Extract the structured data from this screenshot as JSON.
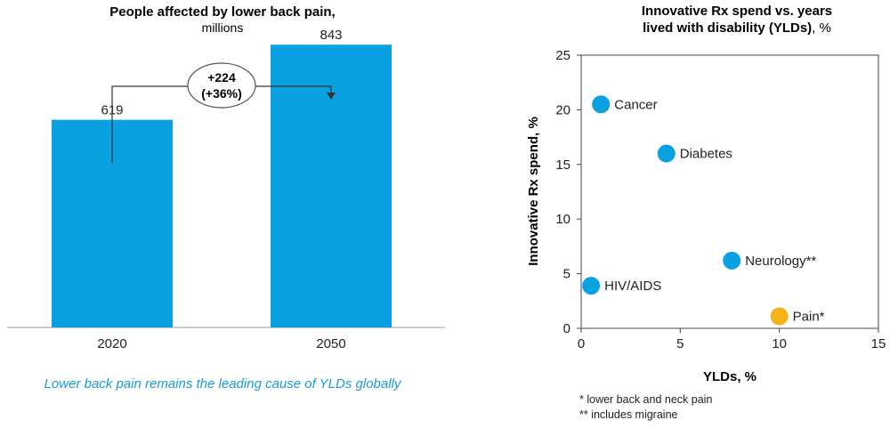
{
  "charts": {
    "left": {
      "title_bold": "People affected by lower back pain,",
      "title_sub": "millions",
      "change_line1": "+224",
      "change_line2": "(+36%)",
      "caption": "Lower back pain remains the leading cause of YLDs globally"
    },
    "right": {
      "title_line1": "Innovative Rx spend vs. years",
      "title_line2_bold": "lived with disability (YLDs)",
      "title_line2_tail": ", %",
      "footnote1": "* lower back and neck pain",
      "footnote2": "** includes migraine"
    }
  },
  "chart_data": [
    {
      "type": "bar",
      "title": "People affected by lower back pain, millions",
      "categories": [
        "2020",
        "2050"
      ],
      "values": [
        619,
        843
      ],
      "ylim": [
        0,
        1000
      ],
      "annotation": "+224 (+36%)",
      "color": "#0aa1e2"
    },
    {
      "type": "scatter",
      "title": "Innovative Rx spend vs. years lived with disability (YLDs), %",
      "xlabel": "YLDs, %",
      "ylabel": "Innovative Rx spend, %",
      "xlim": [
        0,
        15
      ],
      "ylim": [
        0,
        25
      ],
      "xticks": [
        0,
        5,
        10,
        15
      ],
      "yticks": [
        0,
        5,
        10,
        15,
        20,
        25
      ],
      "points": [
        {
          "label": "Cancer",
          "x": 1.0,
          "y": 20.5,
          "color": "#0aa1e2"
        },
        {
          "label": "Diabetes",
          "x": 4.3,
          "y": 16.0,
          "color": "#0aa1e2"
        },
        {
          "label": "Neurology**",
          "x": 7.6,
          "y": 6.2,
          "color": "#0aa1e2"
        },
        {
          "label": "HIV/AIDS",
          "x": 0.5,
          "y": 3.9,
          "color": "#0aa1e2"
        },
        {
          "label": "Pain*",
          "x": 10.0,
          "y": 1.1,
          "color": "#f5b21a"
        }
      ]
    }
  ]
}
